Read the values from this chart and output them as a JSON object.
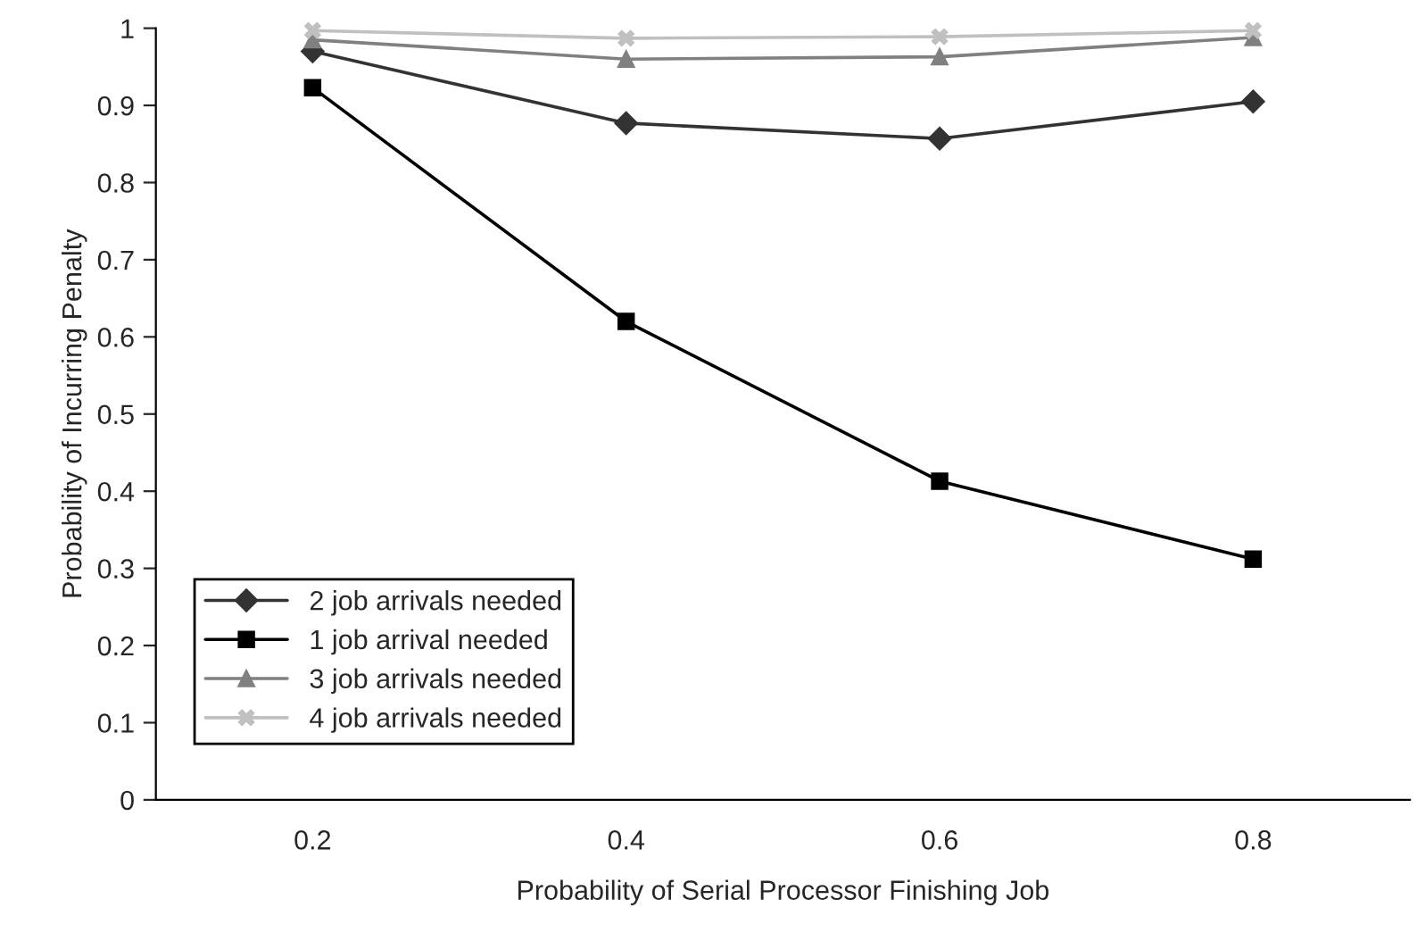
{
  "chart_data": {
    "type": "line",
    "xlabel": "Probability of Serial Processor Finishing Job",
    "ylabel": "Probability of Incurring Penalty",
    "categories": [
      "0.2",
      "0.4",
      "0.6",
      "0.8"
    ],
    "series": [
      {
        "name": "2 job arrivals needed",
        "color": "#333333",
        "marker": "diamond",
        "values": [
          0.97,
          0.877,
          0.857,
          0.905
        ]
      },
      {
        "name": "1 job arrival needed",
        "color": "#000000",
        "marker": "square",
        "values": [
          0.923,
          0.62,
          0.413,
          0.312
        ]
      },
      {
        "name": "3 job arrivals needed",
        "color": "#808080",
        "marker": "triangle",
        "values": [
          0.985,
          0.96,
          0.963,
          0.988
        ]
      },
      {
        "name": "4 job arrivals needed",
        "color": "#c0c0c0",
        "marker": "cross",
        "values": [
          0.997,
          0.987,
          0.989,
          0.997
        ]
      }
    ],
    "ylim": [
      0,
      1
    ],
    "yticks": [
      0,
      0.1,
      0.2,
      0.3,
      0.4,
      0.5,
      0.6,
      0.7,
      0.8,
      0.9,
      1
    ],
    "grid": false,
    "legend": "bottom left",
    "line_style": "solid"
  }
}
